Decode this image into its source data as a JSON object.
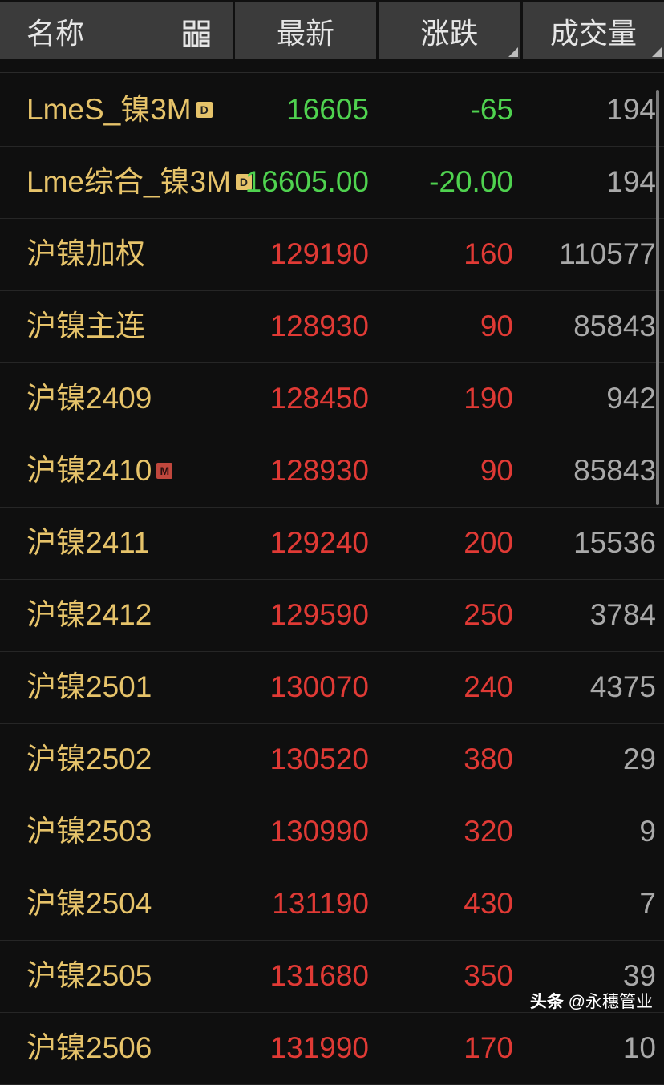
{
  "header": {
    "name": "名称",
    "last": "最新",
    "change": "涨跌",
    "volume": "成交量",
    "grid_icon": "grid-layout-icon"
  },
  "colors": {
    "up": "#e03a35",
    "down": "#4fd24f",
    "name": "#e6c36a"
  },
  "rows": [
    {
      "name": "LmeS_镍3M",
      "badge": "D",
      "last": "16605",
      "change": "-65",
      "volume": "194",
      "trend": "down"
    },
    {
      "name": "Lme综合_镍3M",
      "badge": "D",
      "last": "16605.00",
      "change": "-20.00",
      "volume": "194",
      "trend": "down"
    },
    {
      "name": "沪镍加权",
      "badge": "",
      "last": "129190",
      "change": "160",
      "volume": "110577",
      "trend": "up"
    },
    {
      "name": "沪镍主连",
      "badge": "",
      "last": "128930",
      "change": "90",
      "volume": "85843",
      "trend": "up"
    },
    {
      "name": "沪镍2409",
      "badge": "",
      "last": "128450",
      "change": "190",
      "volume": "942",
      "trend": "up"
    },
    {
      "name": "沪镍2410",
      "badge": "M",
      "last": "128930",
      "change": "90",
      "volume": "85843",
      "trend": "up"
    },
    {
      "name": "沪镍2411",
      "badge": "",
      "last": "129240",
      "change": "200",
      "volume": "15536",
      "trend": "up"
    },
    {
      "name": "沪镍2412",
      "badge": "",
      "last": "129590",
      "change": "250",
      "volume": "3784",
      "trend": "up"
    },
    {
      "name": "沪镍2501",
      "badge": "",
      "last": "130070",
      "change": "240",
      "volume": "4375",
      "trend": "up"
    },
    {
      "name": "沪镍2502",
      "badge": "",
      "last": "130520",
      "change": "380",
      "volume": "29",
      "trend": "up"
    },
    {
      "name": "沪镍2503",
      "badge": "",
      "last": "130990",
      "change": "320",
      "volume": "9",
      "trend": "up"
    },
    {
      "name": "沪镍2504",
      "badge": "",
      "last": "131190",
      "change": "430",
      "volume": "7",
      "trend": "up"
    },
    {
      "name": "沪镍2505",
      "badge": "",
      "last": "131680",
      "change": "350",
      "volume": "39",
      "trend": "up"
    },
    {
      "name": "沪镍2506",
      "badge": "",
      "last": "131990",
      "change": "170",
      "volume": "10",
      "trend": "up"
    }
  ],
  "watermark": {
    "brand": "头条",
    "account": "@永穗管业"
  }
}
